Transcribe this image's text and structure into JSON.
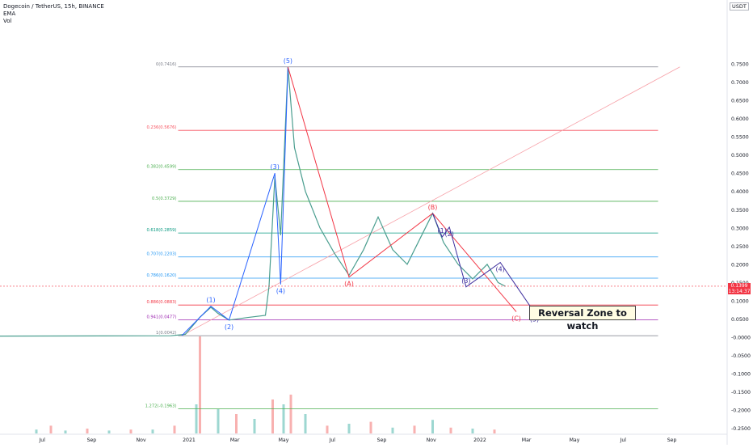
{
  "legend": {
    "symbol": "Dogecoin / TetherUS, 15h, BINANCE",
    "ema": "EMA",
    "vol": "Vol"
  },
  "currency_label": "USDT",
  "last_price": {
    "price": "0.1399",
    "timer": "13:14:37",
    "value": 0.1399
  },
  "reversal_label": "Reversal Zone to watch",
  "colors": {
    "up": "#26a69a",
    "down": "#ef5350",
    "fib_line": "#9e9e9e",
    "impulse": "#2962ff",
    "correction": "#f23645",
    "purple": "#3f2f9e"
  },
  "chart_data": {
    "type": "candlestick",
    "title": "Dogecoin / TetherUS, 15h, BINANCE",
    "x_ticks": [
      "Jul",
      "Sep",
      "Nov",
      "2021",
      "Mar",
      "May",
      "Jul",
      "Sep",
      "Nov",
      "2022",
      "Mar",
      "May",
      "Jul",
      "Sep"
    ],
    "y_ticks": [
      "0.7500",
      "0.7000",
      "0.6500",
      "0.6000",
      "0.5500",
      "0.5000",
      "0.4500",
      "0.4000",
      "0.3500",
      "0.3000",
      "0.2500",
      "0.2000",
      "0.1500",
      "0.1000",
      "0.0500",
      "-0.0000",
      "-0.0500",
      "-0.1000",
      "-0.1500",
      "-0.2000",
      "-0.2500"
    ],
    "y_values": [
      0.75,
      0.7,
      0.65,
      0.6,
      0.55,
      0.5,
      0.45,
      0.4,
      0.35,
      0.3,
      0.25,
      0.2,
      0.15,
      0.1,
      0.05,
      0.0,
      -0.05,
      -0.1,
      -0.15,
      -0.2,
      -0.25
    ],
    "y_range": [
      -0.28,
      0.8
    ],
    "fib_levels": [
      {
        "label": "0(0.7416)",
        "value": 0.7416,
        "color": "#787b86"
      },
      {
        "label": "0.236(0.5676)",
        "value": 0.5676,
        "color": "#f7525f"
      },
      {
        "label": "0.382(0.4599)",
        "value": 0.4599,
        "color": "#4caf50"
      },
      {
        "label": "0.5(0.3729)",
        "value": 0.3729,
        "color": "#4caf50"
      },
      {
        "label": "0.618(0.2859)",
        "value": 0.2859,
        "color": "#089981"
      },
      {
        "label": "0.707(0.2203)",
        "value": 0.2203,
        "color": "#2196f3"
      },
      {
        "label": "0.786(0.1620)",
        "value": 0.162,
        "color": "#2196f3"
      },
      {
        "label": "0.886(0.0883)",
        "value": 0.0883,
        "color": "#f23645"
      },
      {
        "label": "0.941(0.0477)",
        "value": 0.0477,
        "color": "#9c27b0"
      },
      {
        "label": "1(0.0042)",
        "value": 0.0042,
        "color": "#787b86"
      },
      {
        "label": "1.272(-0.1963)",
        "value": -0.1963,
        "color": "#4caf50"
      }
    ],
    "price_path": [
      {
        "x": 0,
        "y": 0.003
      },
      {
        "x": 0.14,
        "y": 0.0035
      },
      {
        "x": 0.235,
        "y": 0.004
      },
      {
        "x": 0.255,
        "y": 0.008
      },
      {
        "x": 0.275,
        "y": 0.055
      },
      {
        "x": 0.29,
        "y": 0.082
      },
      {
        "x": 0.3,
        "y": 0.065
      },
      {
        "x": 0.315,
        "y": 0.047
      },
      {
        "x": 0.34,
        "y": 0.054
      },
      {
        "x": 0.365,
        "y": 0.06
      },
      {
        "x": 0.37,
        "y": 0.14
      },
      {
        "x": 0.378,
        "y": 0.44
      },
      {
        "x": 0.386,
        "y": 0.28
      },
      {
        "x": 0.396,
        "y": 0.7416
      },
      {
        "x": 0.405,
        "y": 0.52
      },
      {
        "x": 0.42,
        "y": 0.4
      },
      {
        "x": 0.44,
        "y": 0.3
      },
      {
        "x": 0.46,
        "y": 0.23
      },
      {
        "x": 0.48,
        "y": 0.17
      },
      {
        "x": 0.5,
        "y": 0.24
      },
      {
        "x": 0.52,
        "y": 0.33
      },
      {
        "x": 0.54,
        "y": 0.24
      },
      {
        "x": 0.56,
        "y": 0.2
      },
      {
        "x": 0.58,
        "y": 0.28
      },
      {
        "x": 0.595,
        "y": 0.34
      },
      {
        "x": 0.61,
        "y": 0.26
      },
      {
        "x": 0.63,
        "y": 0.2
      },
      {
        "x": 0.65,
        "y": 0.16
      },
      {
        "x": 0.67,
        "y": 0.2
      },
      {
        "x": 0.685,
        "y": 0.15
      },
      {
        "x": 0.695,
        "y": 0.1399
      }
    ],
    "volume_profile": [
      {
        "x": 0.05,
        "v": 0.04
      },
      {
        "x": 0.07,
        "v": 0.08
      },
      {
        "x": 0.09,
        "v": 0.03
      },
      {
        "x": 0.12,
        "v": 0.05
      },
      {
        "x": 0.15,
        "v": 0.03
      },
      {
        "x": 0.18,
        "v": 0.04
      },
      {
        "x": 0.21,
        "v": 0.04
      },
      {
        "x": 0.24,
        "v": 0.08
      },
      {
        "x": 0.27,
        "v": 0.3
      },
      {
        "x": 0.275,
        "v": 1.0
      },
      {
        "x": 0.3,
        "v": 0.25
      },
      {
        "x": 0.325,
        "v": 0.2
      },
      {
        "x": 0.35,
        "v": 0.15
      },
      {
        "x": 0.375,
        "v": 0.35
      },
      {
        "x": 0.39,
        "v": 0.3
      },
      {
        "x": 0.4,
        "v": 0.4
      },
      {
        "x": 0.42,
        "v": 0.2
      },
      {
        "x": 0.45,
        "v": 0.08
      },
      {
        "x": 0.48,
        "v": 0.1
      },
      {
        "x": 0.51,
        "v": 0.12
      },
      {
        "x": 0.54,
        "v": 0.06
      },
      {
        "x": 0.57,
        "v": 0.08
      },
      {
        "x": 0.595,
        "v": 0.14
      },
      {
        "x": 0.62,
        "v": 0.06
      },
      {
        "x": 0.65,
        "v": 0.05
      },
      {
        "x": 0.68,
        "v": 0.04
      }
    ],
    "waves": [
      {
        "name": "impulse",
        "color": "#2962ff",
        "points": [
          {
            "x": 0.25,
            "y": 0.0042,
            "label": ""
          },
          {
            "x": 0.29,
            "y": 0.085,
            "label": "(1)"
          },
          {
            "x": 0.315,
            "y": 0.047,
            "label": "(2)"
          },
          {
            "x": 0.378,
            "y": 0.45,
            "label": "(3)"
          },
          {
            "x": 0.386,
            "y": 0.145,
            "label": "(4)"
          },
          {
            "x": 0.396,
            "y": 0.7416,
            "label": "(5)"
          }
        ]
      },
      {
        "name": "correction",
        "color": "#f23645",
        "points": [
          {
            "x": 0.396,
            "y": 0.7416,
            "label": ""
          },
          {
            "x": 0.48,
            "y": 0.165,
            "label": "(A)"
          },
          {
            "x": 0.595,
            "y": 0.34,
            "label": "(B)"
          },
          {
            "x": 0.71,
            "y": 0.07,
            "label": "(C)"
          }
        ]
      },
      {
        "name": "subwave",
        "color": "#3f2f9e",
        "points": [
          {
            "x": 0.595,
            "y": 0.34,
            "label": ""
          },
          {
            "x": 0.608,
            "y": 0.275,
            "label": "(1)"
          },
          {
            "x": 0.618,
            "y": 0.302,
            "label": "(2)"
          },
          {
            "x": 0.641,
            "y": 0.138,
            "label": "(3)"
          },
          {
            "x": 0.688,
            "y": 0.205,
            "label": "(4)"
          },
          {
            "x": 0.735,
            "y": 0.068,
            "label": "(5)"
          }
        ]
      }
    ],
    "trend_line": {
      "from": {
        "x": 0.25,
        "y": 0.0042
      },
      "to": {
        "x": 0.935,
        "y": 0.7416
      }
    }
  }
}
